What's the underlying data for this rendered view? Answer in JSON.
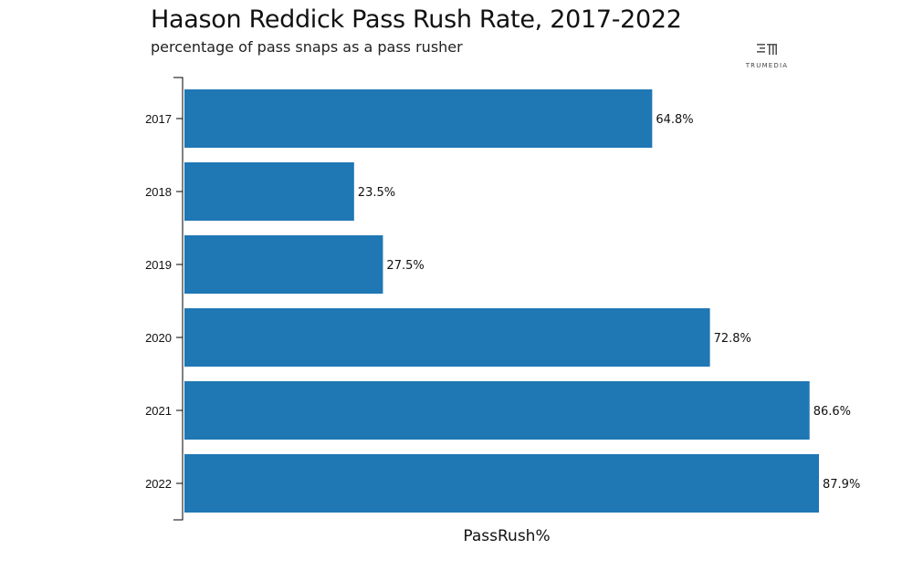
{
  "brand": {
    "name": "TRUMEDIA",
    "logo_icon": "trumedia-logo-icon"
  },
  "colors": {
    "bar": "#1f77b4",
    "axis": "#000000",
    "text": "#111111"
  },
  "chart_data": {
    "type": "bar",
    "orientation": "horizontal",
    "title": "Haason Reddick Pass Rush Rate, 2017-2022",
    "subtitle": "percentage of pass snaps as a pass rusher",
    "xlabel": "PassRush%",
    "ylabel": "",
    "categories": [
      "2017",
      "2018",
      "2019",
      "2020",
      "2021",
      "2022"
    ],
    "values": [
      64.8,
      23.5,
      27.5,
      72.8,
      86.6,
      87.9
    ],
    "labels": [
      "64.8%",
      "23.5%",
      "27.5%",
      "72.8%",
      "86.6%",
      "87.9%"
    ],
    "xlim": [
      0,
      87.9
    ],
    "grid": false,
    "legend": "none"
  }
}
